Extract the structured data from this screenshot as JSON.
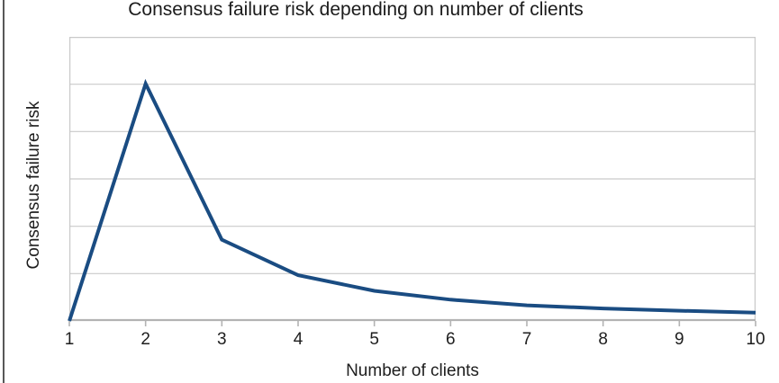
{
  "page": {
    "background_color": "#ffffff",
    "left_border_color": "#585858"
  },
  "chart": {
    "title": "Consensus failure risk depending on number of clients",
    "x_axis_title": "Number of clients",
    "y_axis_title": "Consensus failure risk"
  },
  "chart_data": {
    "type": "line",
    "title": "Consensus failure risk depending on number of clients",
    "xlabel": "Number of clients",
    "ylabel": "Consensus failure risk",
    "x": [
      1,
      2,
      3,
      4,
      5,
      6,
      7,
      8,
      9,
      10
    ],
    "x_tick_labels": [
      "1",
      "2",
      "3",
      "4",
      "5",
      "6",
      "7",
      "8",
      "9",
      "10"
    ],
    "y_tick_labels": [],
    "values": [
      0,
      0.835,
      0.286,
      0.161,
      0.106,
      0.075,
      0.055,
      0.044,
      0.036,
      0.029
    ],
    "values_note": "y axis shows no numeric tick labels; values are fractions of the full y-axis height (0 = x-axis, 1 = top plot border); peak at x=2 sits on the 5th of 6 gridlines, x=4 sits on the 1st gridline",
    "xlim": [
      1,
      10
    ],
    "ylim": [
      0,
      1
    ],
    "y_divisions": 6,
    "grid": "horizontal-only",
    "legend": "none",
    "plot_border": true,
    "line_color": "#1a4c82",
    "line_width": 4,
    "grid_color": "#c9c9c9",
    "axis_color": "#b3b3b3",
    "text_color": "#1e1e1e"
  }
}
